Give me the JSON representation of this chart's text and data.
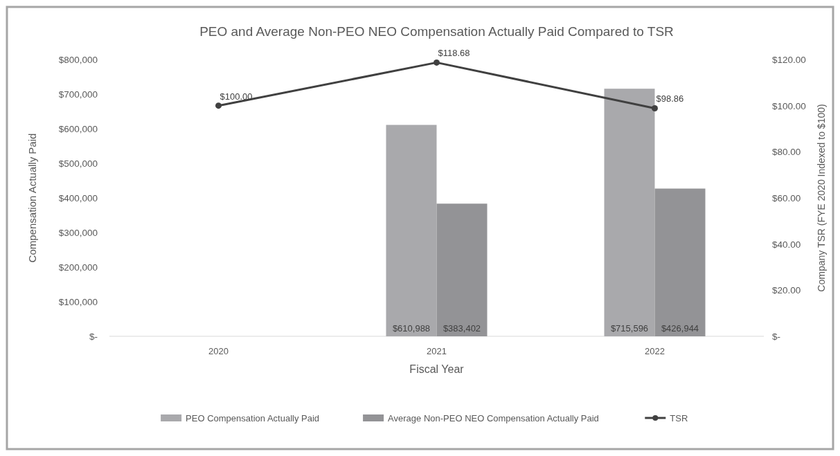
{
  "chart_data": {
    "type": "bar",
    "title": "PEO and Average Non-PEO NEO Compensation Actually Paid Compared to TSR",
    "xlabel": "Fiscal Year",
    "ylabel": "Compensation Actually Paid",
    "y2label": "Company TSR (FYE 2020 Indexed to $100)",
    "categories": [
      "2020",
      "2021",
      "2022"
    ],
    "series": [
      {
        "name": "PEO Compensation Actually Paid",
        "color": "#a9a9ac",
        "values": [
          null,
          610988,
          715596
        ],
        "value_labels": [
          null,
          "$610,988",
          "$715,596"
        ]
      },
      {
        "name": "Average Non-PEO NEO Compensation Actually Paid",
        "color": "#939396",
        "values": [
          null,
          383402,
          426944
        ],
        "value_labels": [
          null,
          "$383,402",
          "$426,944"
        ]
      },
      {
        "name": "TSR",
        "type": "line",
        "axis": "y2",
        "color": "#404040",
        "values": [
          100,
          118.68,
          98.86
        ],
        "value_labels": [
          "$100.00",
          "$118.68",
          "$98.86"
        ],
        "marker": "circle"
      }
    ],
    "ylim": [
      0,
      800000
    ],
    "yticks": [
      {
        "value": 0,
        "label": "$-"
      },
      {
        "value": 100000,
        "label": "$100,000"
      },
      {
        "value": 200000,
        "label": "$200,000"
      },
      {
        "value": 300000,
        "label": "$300,000"
      },
      {
        "value": 400000,
        "label": "$400,000"
      },
      {
        "value": 500000,
        "label": "$500,000"
      },
      {
        "value": 600000,
        "label": "$600,000"
      },
      {
        "value": 700000,
        "label": "$700,000"
      },
      {
        "value": 800000,
        "label": "$800,000"
      }
    ],
    "y2lim": [
      0,
      120
    ],
    "y2ticks": [
      {
        "value": 0,
        "label": "$-"
      },
      {
        "value": 20,
        "label": "$20.00"
      },
      {
        "value": 40,
        "label": "$40.00"
      },
      {
        "value": 60,
        "label": "$60.00"
      },
      {
        "value": 80,
        "label": "$80.00"
      },
      {
        "value": 100,
        "label": "$100.00"
      },
      {
        "value": 120,
        "label": "$120.00"
      }
    ],
    "grid": false,
    "legend": "bottom"
  }
}
